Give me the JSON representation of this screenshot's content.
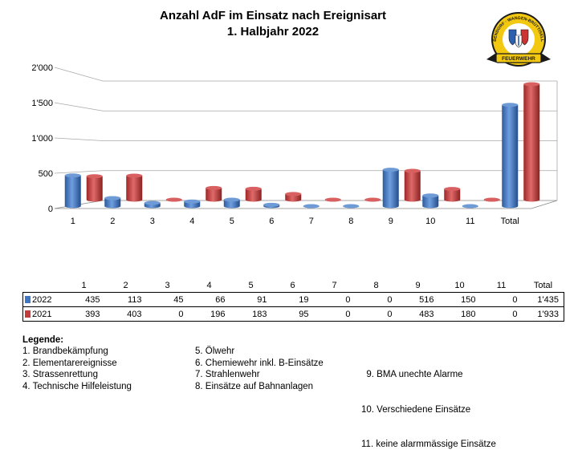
{
  "chart_data": {
    "type": "bar",
    "title": "Anzahl AdF im Einsatz nach Ereignisart",
    "subtitle": "1. Halbjahr 2022",
    "categories": [
      "1",
      "2",
      "3",
      "4",
      "5",
      "6",
      "7",
      "8",
      "9",
      "10",
      "11",
      "Total"
    ],
    "series": [
      {
        "name": "2022",
        "color": "#3f76c4",
        "values": [
          435,
          113,
          45,
          66,
          91,
          19,
          0,
          0,
          516,
          150,
          0,
          1435
        ],
        "labels": [
          "435",
          "113",
          "45",
          "66",
          "91",
          "19",
          "0",
          "0",
          "516",
          "150",
          "0",
          "1'435"
        ]
      },
      {
        "name": "2021",
        "color": "#c43b3b",
        "values": [
          393,
          403,
          0,
          196,
          183,
          95,
          0,
          0,
          483,
          180,
          0,
          1933
        ],
        "labels": [
          "393",
          "403",
          "0",
          "196",
          "183",
          "95",
          "0",
          "0",
          "483",
          "180",
          "0",
          "1'933"
        ]
      }
    ],
    "yticks": [
      0,
      500,
      1000,
      1500,
      2000
    ],
    "ytick_labels": [
      "0",
      "500",
      "1'000",
      "1'500",
      "2'000"
    ],
    "ylim": [
      0,
      2000
    ],
    "grid": true,
    "style": "3d-cylinder",
    "legend": "data-table"
  },
  "legend": {
    "title": "Legende:",
    "col1": [
      "1.   Brandbekämpfung",
      "2.   Elementarereignisse",
      "3.   Strassenrettung",
      "4.   Technische Hilfeleistung"
    ],
    "col2": [
      "5. Ölwehr",
      "6. Chemiewehr inkl. B-Einsätze",
      "7. Strahlenwehr",
      "8. Einsätze auf Bahnanlagen"
    ],
    "col3": [
      "  9. BMA unechte Alarme",
      "10. Verschiedene Einsätze",
      "11. keine alarmmässige Einsätze"
    ]
  },
  "logo": {
    "top_text": "DÜBENDORF · WANGEN-BRÜTTISELLEN",
    "bottom_text": "FEUERWEHR"
  }
}
